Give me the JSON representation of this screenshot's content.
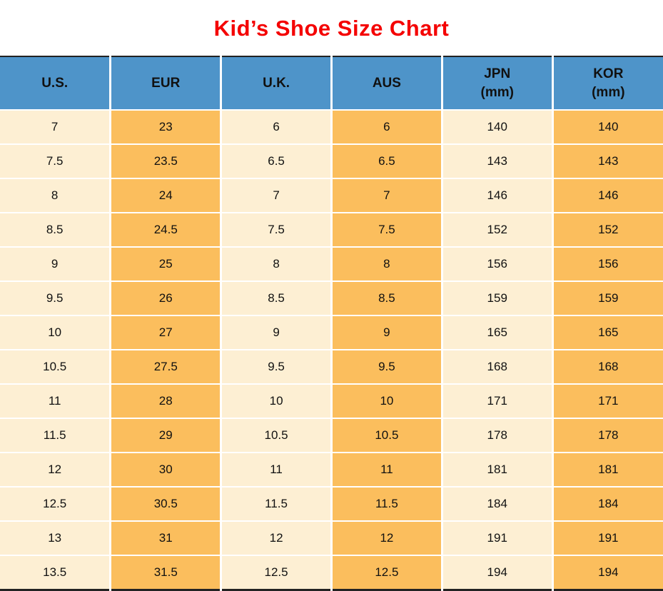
{
  "page": {
    "title": "Kid’s Shoe Size Chart"
  },
  "colors": {
    "title_red": "#f40000",
    "header_blue": "#4e94c9",
    "column_cream": "#fdefd3",
    "column_orange": "#fbbe5d",
    "grid_white": "#ffffff",
    "edge_dark": "#222222"
  },
  "table": {
    "headers": [
      {
        "label": "U.S.",
        "sub": ""
      },
      {
        "label": "EUR",
        "sub": ""
      },
      {
        "label": "U.K.",
        "sub": ""
      },
      {
        "label": "AUS",
        "sub": ""
      },
      {
        "label": "JPN",
        "sub": "(mm)"
      },
      {
        "label": "KOR",
        "sub": "(mm)"
      }
    ]
  },
  "chart_data": {
    "type": "table",
    "title": "Kid’s Shoe Size Chart",
    "columns": [
      "U.S.",
      "EUR",
      "U.K.",
      "AUS",
      "JPN (mm)",
      "KOR (mm)"
    ],
    "rows": [
      [
        "7",
        "23",
        "6",
        "6",
        "140",
        "140"
      ],
      [
        "7.5",
        "23.5",
        "6.5",
        "6.5",
        "143",
        "143"
      ],
      [
        "8",
        "24",
        "7",
        "7",
        "146",
        "146"
      ],
      [
        "8.5",
        "24.5",
        "7.5",
        "7.5",
        "152",
        "152"
      ],
      [
        "9",
        "25",
        "8",
        "8",
        "156",
        "156"
      ],
      [
        "9.5",
        "26",
        "8.5",
        "8.5",
        "159",
        "159"
      ],
      [
        "10",
        "27",
        "9",
        "9",
        "165",
        "165"
      ],
      [
        "10.5",
        "27.5",
        "9.5",
        "9.5",
        "168",
        "168"
      ],
      [
        "11",
        "28",
        "10",
        "10",
        "171",
        "171"
      ],
      [
        "11.5",
        "29",
        "10.5",
        "10.5",
        "178",
        "178"
      ],
      [
        "12",
        "30",
        "11",
        "11",
        "181",
        "181"
      ],
      [
        "12.5",
        "30.5",
        "11.5",
        "11.5",
        "184",
        "184"
      ],
      [
        "13",
        "31",
        "12",
        "12",
        "191",
        "191"
      ],
      [
        "13.5",
        "31.5",
        "12.5",
        "12.5",
        "194",
        "194"
      ]
    ]
  }
}
